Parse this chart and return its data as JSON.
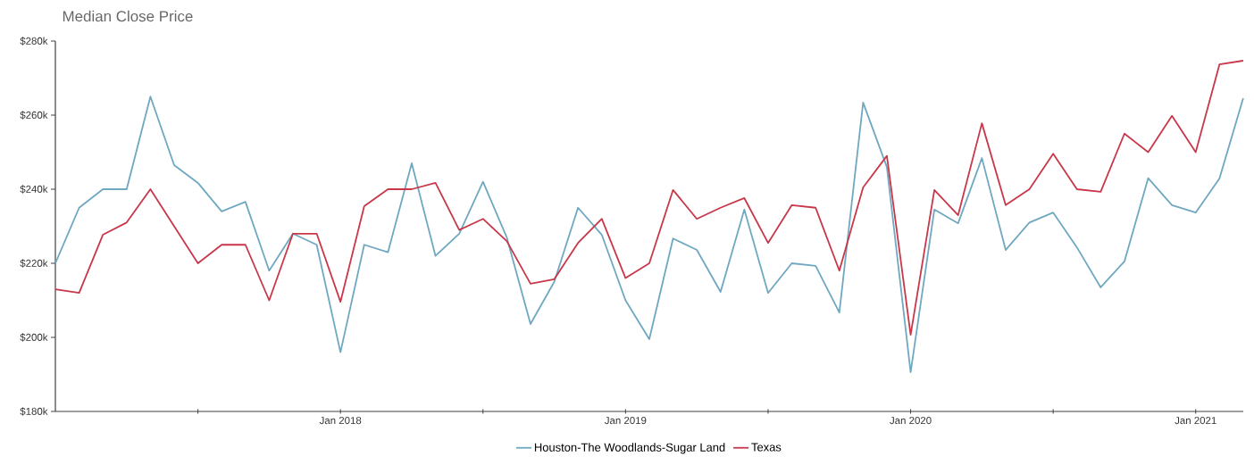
{
  "chart_data": {
    "type": "line",
    "title": "Median Close Price",
    "x": [
      "2017-01",
      "2017-02",
      "2017-03",
      "2017-04",
      "2017-05",
      "2017-06",
      "2017-07",
      "2017-08",
      "2017-09",
      "2017-10",
      "2017-11",
      "2017-12",
      "2018-01",
      "2018-02",
      "2018-03",
      "2018-04",
      "2018-05",
      "2018-06",
      "2018-07",
      "2018-08",
      "2018-09",
      "2018-10",
      "2018-11",
      "2018-12",
      "2019-01",
      "2019-02",
      "2019-03",
      "2019-04",
      "2019-05",
      "2019-06",
      "2019-07",
      "2019-08",
      "2019-09",
      "2019-10",
      "2019-11",
      "2019-12",
      "2020-01",
      "2020-02",
      "2020-03",
      "2020-04",
      "2020-05",
      "2020-06",
      "2020-07",
      "2020-08",
      "2020-09",
      "2020-10",
      "2020-11",
      "2020-12",
      "2021-01",
      "2021-02",
      "2021-03"
    ],
    "series": [
      {
        "name": "Houston-The Woodlands-Sugar Land",
        "color": "#6fa8c0",
        "values": [
          220,
          235,
          240,
          240,
          265,
          246.5,
          241.7,
          234,
          236.6,
          218,
          228,
          225,
          196,
          225,
          223,
          247,
          222,
          228,
          242,
          227,
          203.6,
          215,
          235,
          227.7,
          210,
          199.5,
          226.7,
          223.6,
          212.3,
          234.5,
          212,
          220,
          219.3,
          206.7,
          263.4,
          246,
          190.6,
          234.5,
          230.8,
          248.4,
          223.6,
          231,
          233.7,
          224.3,
          213.5,
          220.5,
          243,
          235.7,
          233.7,
          242.9,
          264.6
        ]
      },
      {
        "name": "Texas",
        "color": "#c8374a",
        "values": [
          213,
          212,
          227.7,
          231,
          240,
          230,
          220,
          225,
          225,
          210,
          228,
          228,
          209.6,
          235.4,
          240,
          240,
          241.7,
          229,
          232,
          226,
          214.5,
          215.7,
          225.5,
          232,
          216,
          220,
          239.8,
          232,
          235,
          237.6,
          225.5,
          235.7,
          235,
          218,
          240.5,
          249,
          200.7,
          239.8,
          233,
          257.8,
          235.7,
          240,
          249.6,
          240,
          239.3,
          255,
          250,
          259.8,
          250,
          273.7,
          274.7
        ]
      }
    ],
    "xlim": [
      "2017-01",
      "2021-03"
    ],
    "xticks": [
      {
        "value": "2017-07",
        "label": null
      },
      {
        "value": "2018-01",
        "label": "Jan 2018"
      },
      {
        "value": "2018-07",
        "label": null
      },
      {
        "value": "2019-01",
        "label": "Jan 2019"
      },
      {
        "value": "2019-07",
        "label": null
      },
      {
        "value": "2020-01",
        "label": "Jan 2020"
      },
      {
        "value": "2020-07",
        "label": null
      },
      {
        "value": "2021-01",
        "label": "Jan 2021"
      }
    ],
    "ylim": [
      180,
      280
    ],
    "yticks": [
      {
        "value": 180,
        "label": "$180k"
      },
      {
        "value": 200,
        "label": "$200k"
      },
      {
        "value": 220,
        "label": "$220k"
      },
      {
        "value": 240,
        "label": "$240k"
      },
      {
        "value": 260,
        "label": "$260k"
      },
      {
        "value": 280,
        "label": "$280k"
      }
    ],
    "grid": false,
    "legend": "bottom"
  }
}
